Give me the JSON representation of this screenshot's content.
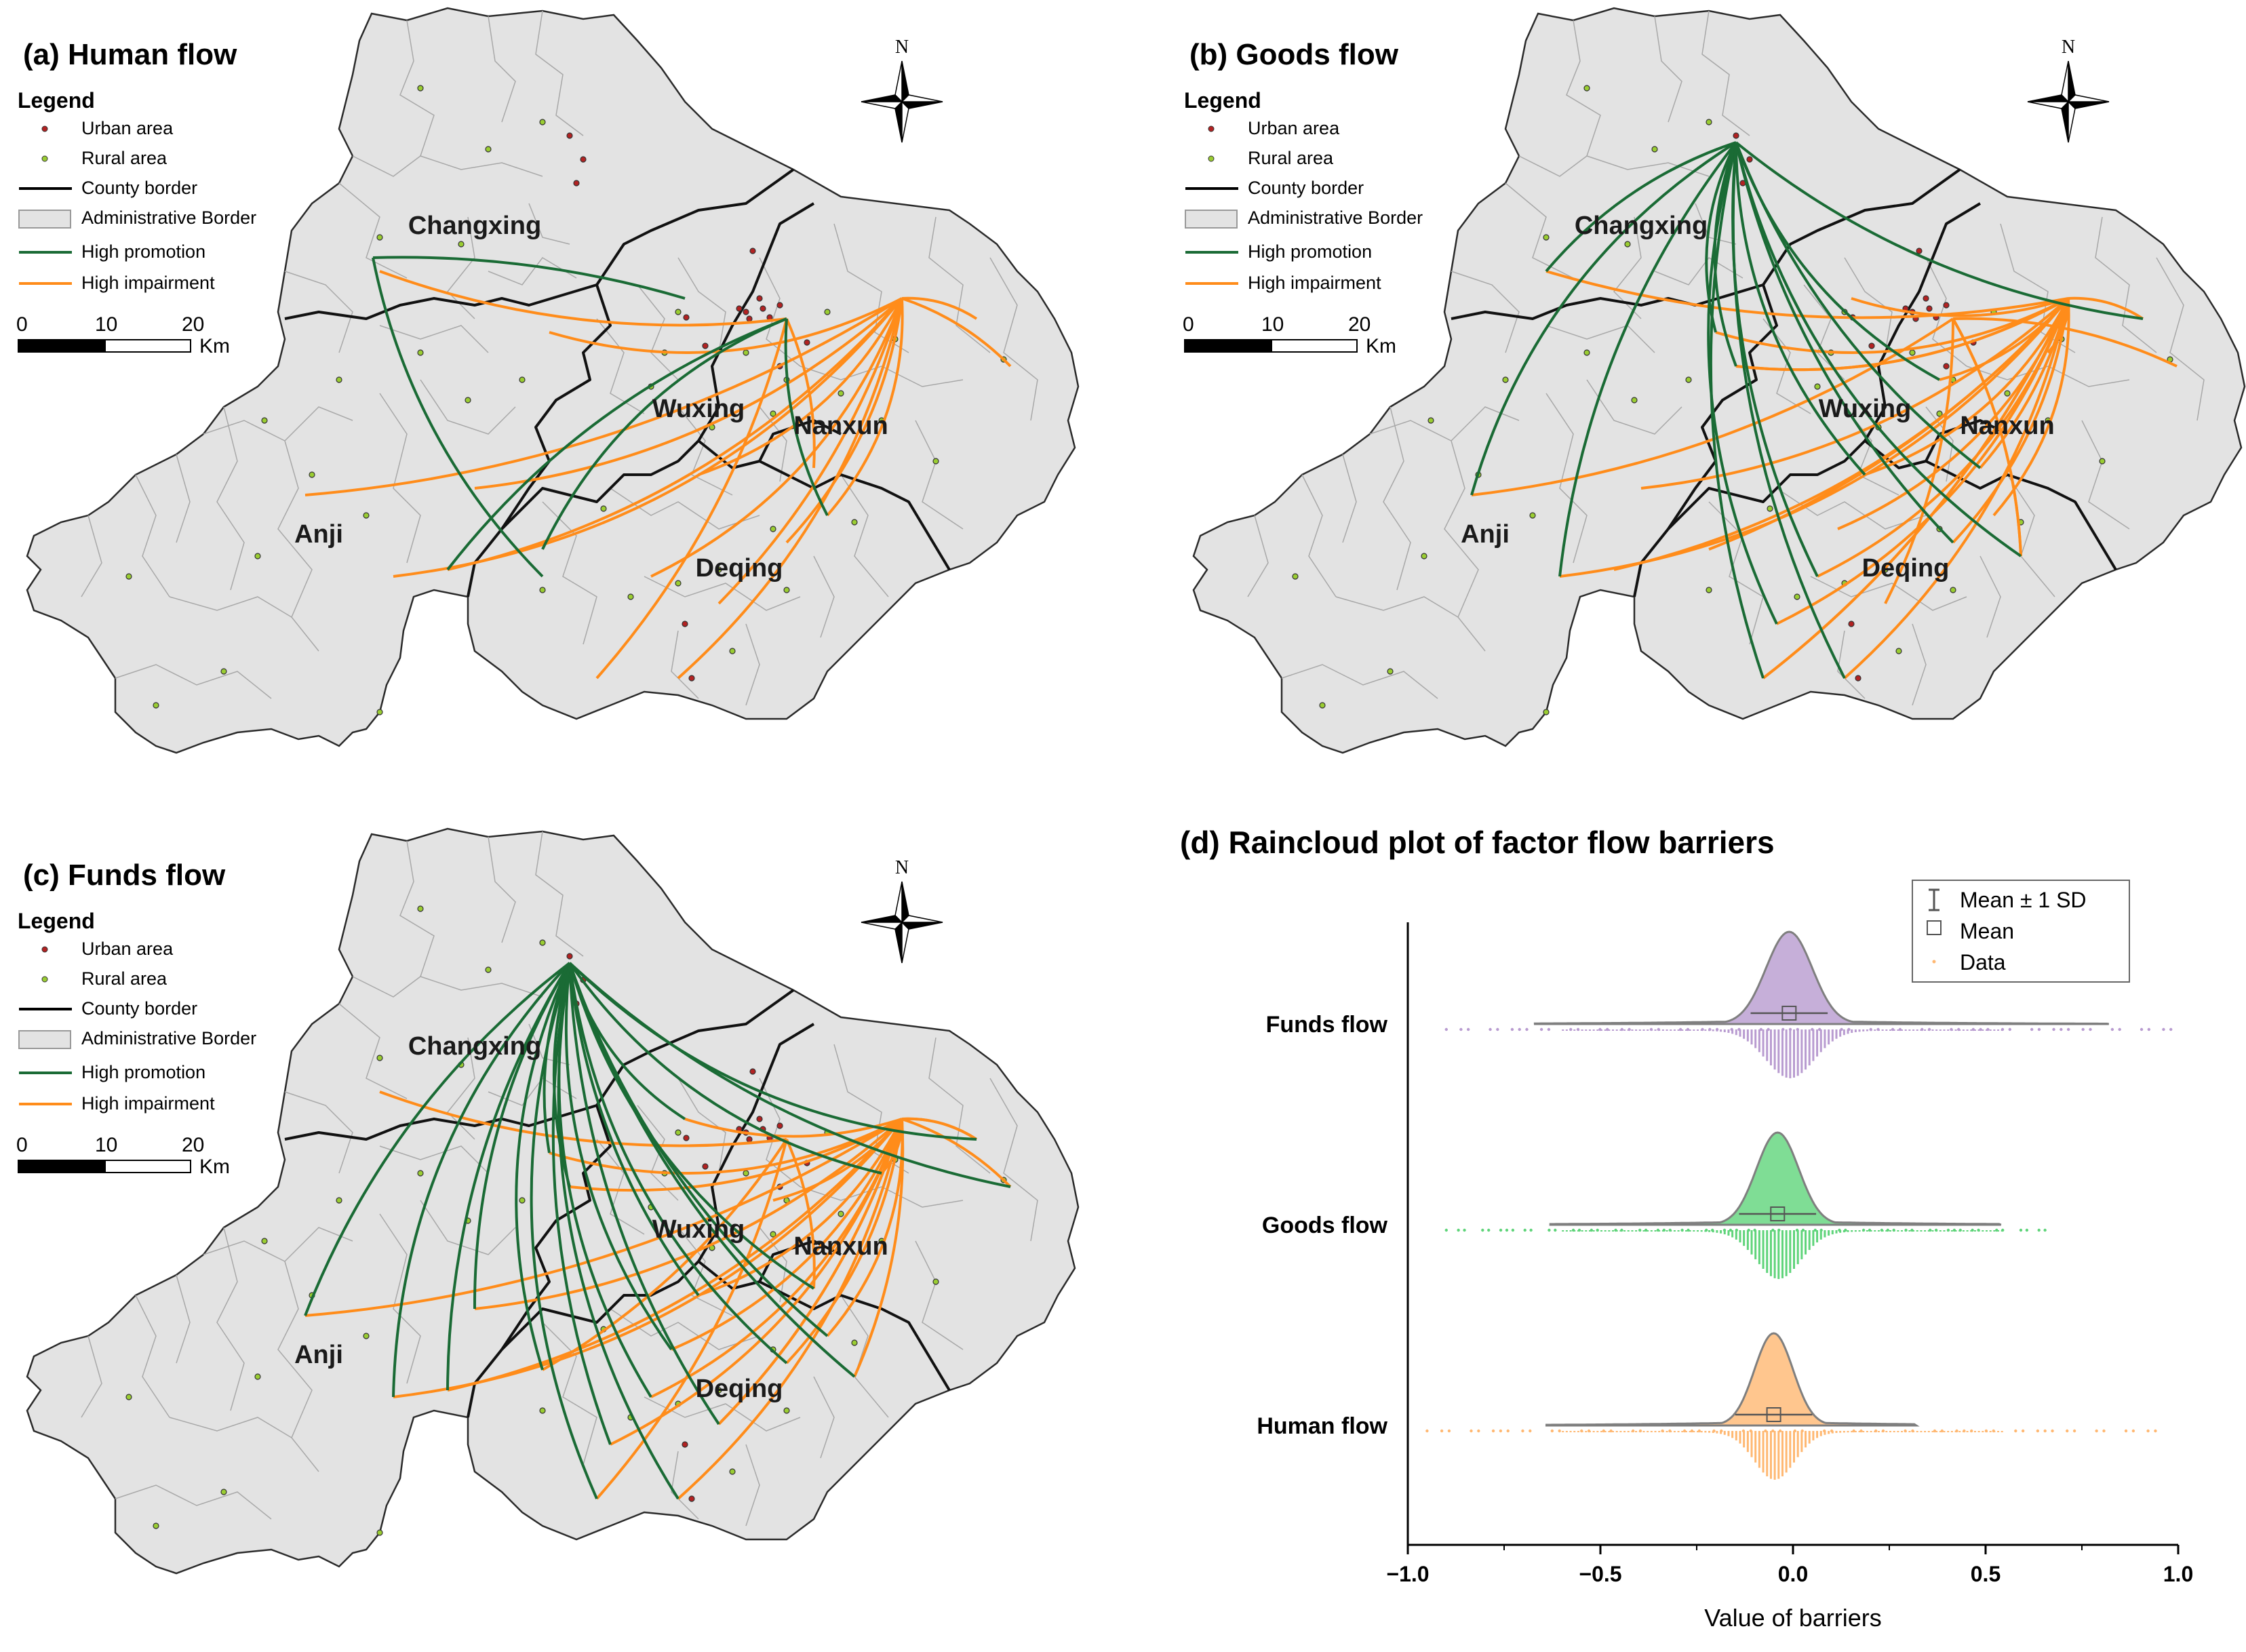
{
  "map_panels": [
    {
      "title": "(a) Human flow",
      "north_label": "N",
      "counties": [
        "Changxing",
        "Wuxing",
        "Nanxun",
        "Anji",
        "Deqing"
      ],
      "legend": {
        "heading": "Legend",
        "items": [
          "Urban area",
          "Rural area",
          "County border",
          "Administrative Border",
          "High promotion",
          "High impairment"
        ]
      },
      "scale": {
        "ticks": [
          "0",
          "10",
          "20"
        ],
        "unit": "Km"
      },
      "flows": {
        "promotion_count": 3,
        "impairment_count": 16
      }
    },
    {
      "title": "(b) Goods flow",
      "north_label": "N",
      "counties": [
        "Changxing",
        "Wuxing",
        "Nanxun",
        "Anji",
        "Deqing"
      ],
      "legend": {
        "heading": "Legend",
        "items": [
          "Urban area",
          "Rural area",
          "County border",
          "Administrative Border",
          "High promotion",
          "High impairment"
        ]
      },
      "scale": {
        "ticks": [
          "0",
          "10",
          "20"
        ],
        "unit": "Km"
      },
      "flows": {
        "promotion_count": 15,
        "impairment_count": 28
      }
    },
    {
      "title": "(c) Funds flow",
      "north_label": "N",
      "counties": [
        "Changxing",
        "Wuxing",
        "Nanxun",
        "Anji",
        "Deqing"
      ],
      "legend": {
        "heading": "Legend",
        "items": [
          "Urban area",
          "Rural area",
          "County border",
          "Administrative Border",
          "High promotion",
          "High impairment"
        ]
      },
      "scale": {
        "ticks": [
          "0",
          "10",
          "20"
        ],
        "unit": "Km"
      },
      "flows": {
        "promotion_count": 22,
        "impairment_count": 26
      }
    }
  ],
  "colors": {
    "land": "#e3e3e3",
    "urban": "#b22222",
    "rural": "#9acd32",
    "promotion": "#1a6b35",
    "impairment": "#ff8c1a",
    "funds": "#b89bd0",
    "goods": "#5fd47a",
    "human": "#ffb872",
    "box": "#7f7f7f"
  },
  "chart_data": {
    "type": "raincloud",
    "title": "(d) Raincloud plot of factor flow barriers",
    "xlabel": "Value of barriers",
    "ylabel": "",
    "xlim": [
      -1.0,
      1.0
    ],
    "xticks": [
      "−1.0",
      "−0.5",
      "0.0",
      "0.5",
      "1.0"
    ],
    "xtick_values": [
      -1.0,
      -0.5,
      0.0,
      0.5,
      1.0
    ],
    "legend": [
      "Mean ± 1 SD",
      "Mean",
      "Data"
    ],
    "legend_position": "top-right",
    "grid": false,
    "series": [
      {
        "name": "Funds flow",
        "mean": -0.01,
        "sd": 0.1,
        "whisker": [
          -0.67,
          0.82
        ],
        "density_sd": 0.06,
        "data_range": [
          -0.9,
          1.0
        ]
      },
      {
        "name": "Goods flow",
        "mean": -0.04,
        "sd": 0.1,
        "whisker": [
          -0.63,
          0.54
        ],
        "density_sd": 0.055,
        "data_range": [
          -0.9,
          0.67
        ]
      },
      {
        "name": "Human flow",
        "mean": -0.05,
        "sd": 0.1,
        "whisker": [
          -0.64,
          0.32
        ],
        "density_sd": 0.05,
        "data_range": [
          -0.95,
          0.96
        ]
      }
    ]
  }
}
